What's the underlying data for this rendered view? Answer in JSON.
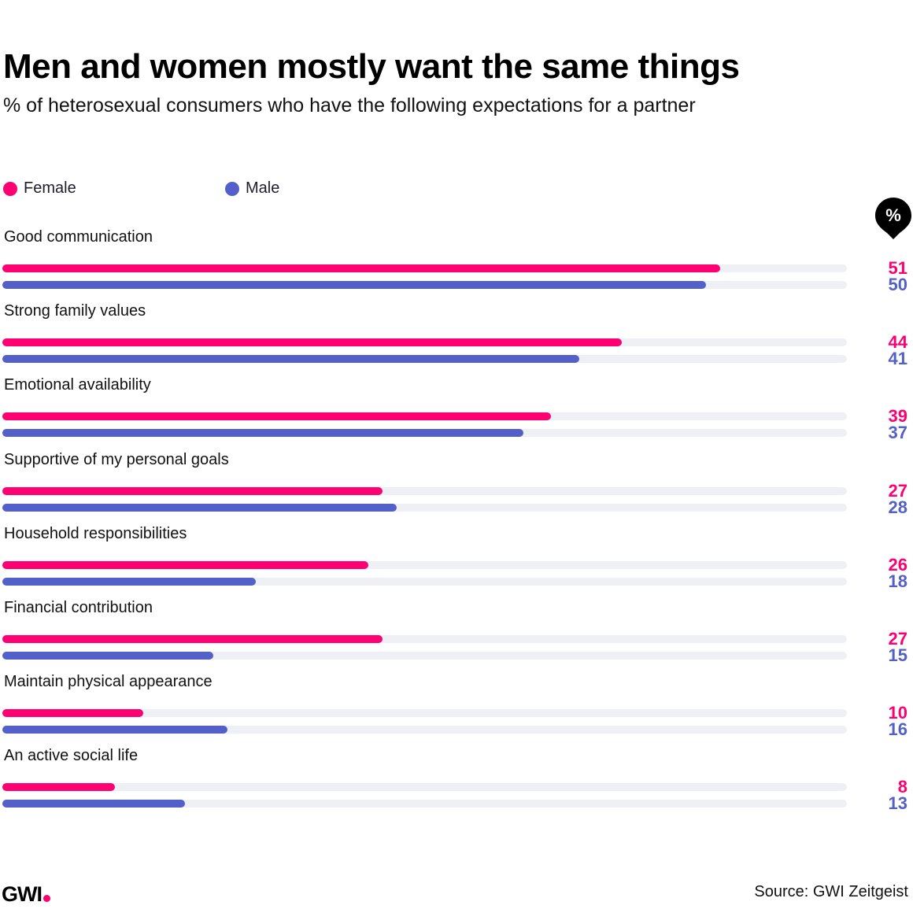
{
  "colors": {
    "female": "#ff0073",
    "male": "#5360c9",
    "track": "#eef0f6",
    "text": "#000000"
  },
  "chart_data": {
    "type": "bar",
    "orientation": "horizontal",
    "title": "Men and women mostly want the same things",
    "subtitle": "% of heterosexual consumers who have the following expectations for a partner",
    "unit_badge": "%",
    "xlim": [
      0,
      60
    ],
    "grid": false,
    "legend_position": "top-left",
    "categories": [
      "Good communication",
      "Strong family values",
      "Emotional availability",
      "Supportive of my personal goals",
      "Household responsibilities",
      "Financial contribution",
      "Maintain physical appearance",
      "An active social life"
    ],
    "series": [
      {
        "name": "Female",
        "values": [
          51,
          44,
          39,
          27,
          26,
          27,
          10,
          8
        ]
      },
      {
        "name": "Male",
        "values": [
          50,
          41,
          37,
          28,
          18,
          15,
          16,
          13
        ]
      }
    ]
  },
  "footer": {
    "logo": "GWI",
    "source": "Source: GWI Zeitgeist"
  }
}
